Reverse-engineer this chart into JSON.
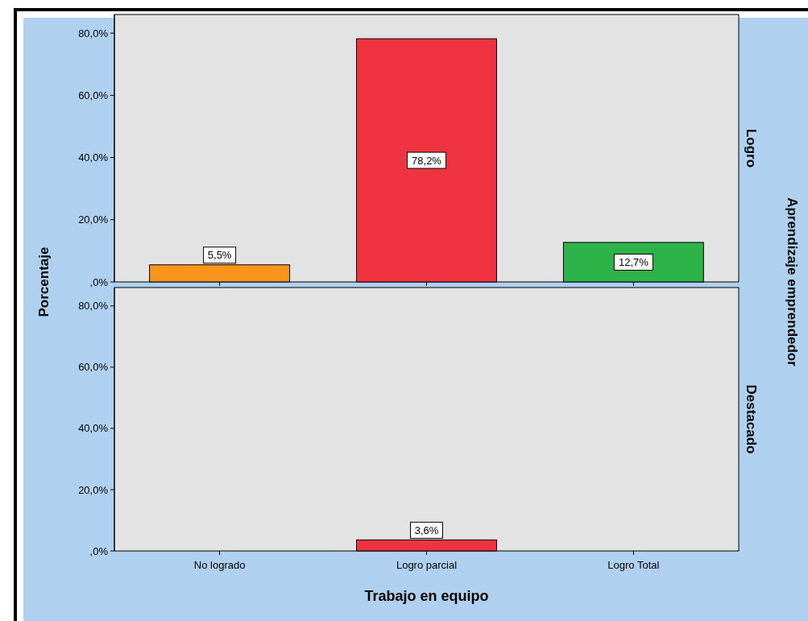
{
  "chart_data": [
    {
      "type": "bar",
      "title": "Logro",
      "ylabel": "Porcentaje",
      "annotations": [
        "Aprendizaje emprendedor"
      ],
      "categories": [
        null,
        null,
        null
      ],
      "values": [
        5.5,
        78.2,
        12.7
      ],
      "colors": [
        "#f7941d",
        "#ef3340",
        "#2db34a"
      ],
      "value_labels": [
        "5,5%",
        "78,2%",
        "12,7%"
      ],
      "ylim": [
        0,
        86
      ],
      "yticks": [
        {
          "value": 0,
          "label": ",0%"
        },
        {
          "value": 20,
          "label": "20,0%"
        },
        {
          "value": 40,
          "label": "40,0%"
        },
        {
          "value": 60,
          "label": "60,0%"
        },
        {
          "value": 80,
          "label": "80,0%"
        }
      ]
    },
    {
      "type": "bar",
      "title": "Destacado",
      "xlabel": "Trabajo en equipo",
      "categories": [
        "No logrado",
        "Logro parcial",
        "Logro Total"
      ],
      "values": [
        null,
        3.6,
        null
      ],
      "color": "#ef3340",
      "value_labels": [
        null,
        "3,6%",
        null
      ],
      "ylim": [
        0,
        86
      ],
      "yticks": [
        {
          "value": 0,
          "label": ",0%"
        },
        {
          "value": 20,
          "label": "20,0%"
        },
        {
          "value": 40,
          "label": "40,0%"
        },
        {
          "value": 60,
          "label": "60,0%"
        },
        {
          "value": 80,
          "label": "80,0%"
        }
      ]
    }
  ]
}
